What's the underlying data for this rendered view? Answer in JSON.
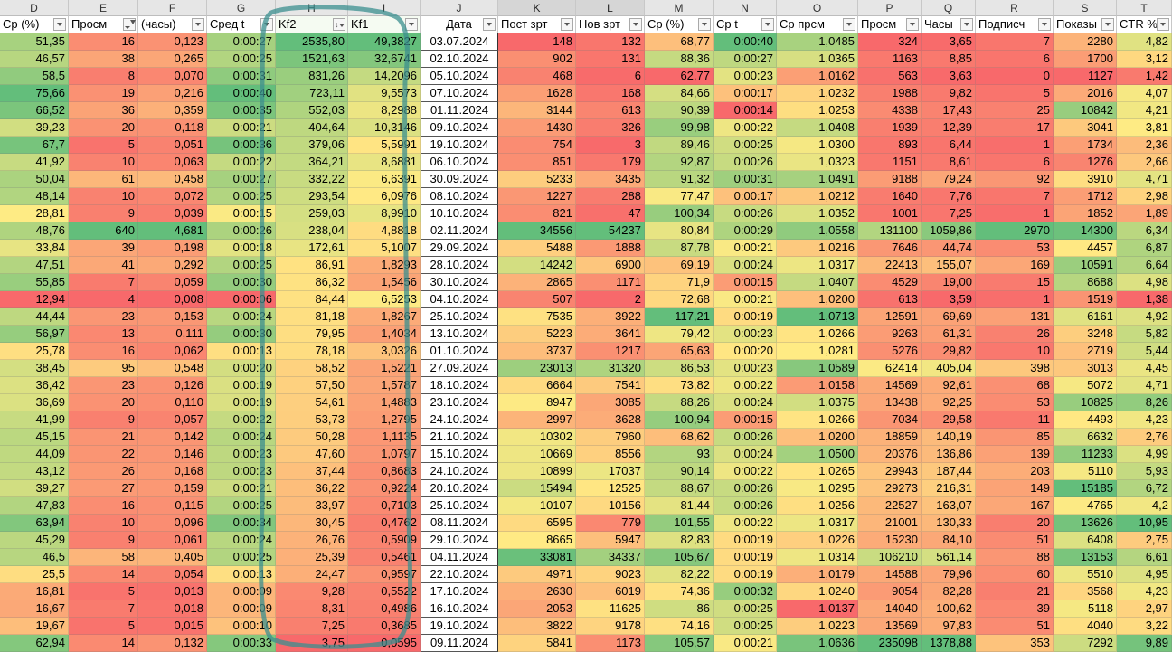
{
  "sheet": {
    "column_letters": [
      "D",
      "E",
      "F",
      "G",
      "H",
      "I",
      "J",
      "K",
      "L",
      "M",
      "N",
      "O",
      "P",
      "Q",
      "R",
      "S",
      "T"
    ],
    "headers": [
      "Ср (%)",
      "Просм",
      "(часы)",
      "Сред t",
      "Kf2",
      "Kf1",
      "Дата",
      "Пост зрт",
      "Нов зрт",
      "Ср (%)",
      "Ср t",
      "Ср прсм",
      "Просм",
      "Часы",
      "Подписч",
      "Показы",
      "CTR %"
    ],
    "rows": [
      [
        "51,35",
        "16",
        "0,123",
        "0:00:27",
        "2535,80",
        "49,3827",
        "03.07.2024",
        "148",
        "132",
        "68,77",
        "0:00:40",
        "1,0485",
        "324",
        "3,65",
        "7",
        "2280",
        "4,82"
      ],
      [
        "46,57",
        "38",
        "0,265",
        "0:00:25",
        "1521,63",
        "32,6741",
        "02.10.2024",
        "902",
        "131",
        "88,36",
        "0:00:27",
        "1,0365",
        "1163",
        "8,85",
        "6",
        "1700",
        "3,12"
      ],
      [
        "58,5",
        "8",
        "0,070",
        "0:00:31",
        "831,26",
        "14,2096",
        "05.10.2024",
        "468",
        "6",
        "62,77",
        "0:00:23",
        "1,0162",
        "563",
        "3,63",
        "0",
        "1127",
        "1,42"
      ],
      [
        "75,66",
        "19",
        "0,216",
        "0:00:40",
        "723,11",
        "9,5573",
        "07.10.2024",
        "1628",
        "168",
        "84,66",
        "0:00:17",
        "1,0232",
        "1988",
        "9,82",
        "5",
        "2016",
        "4,07"
      ],
      [
        "66,52",
        "36",
        "0,359",
        "0:00:35",
        "552,03",
        "8,2988",
        "01.11.2024",
        "3144",
        "613",
        "90,39",
        "0:00:14",
        "1,0253",
        "4338",
        "17,43",
        "25",
        "10842",
        "4,21"
      ],
      [
        "39,23",
        "20",
        "0,118",
        "0:00:21",
        "404,64",
        "10,3146",
        "09.10.2024",
        "1430",
        "326",
        "99,98",
        "0:00:22",
        "1,0408",
        "1939",
        "12,39",
        "17",
        "3041",
        "3,81"
      ],
      [
        "67,7",
        "5",
        "0,051",
        "0:00:36",
        "379,06",
        "5,5991",
        "19.10.2024",
        "754",
        "3",
        "89,46",
        "0:00:25",
        "1,0300",
        "893",
        "6,44",
        "1",
        "1734",
        "2,36"
      ],
      [
        "41,92",
        "10",
        "0,063",
        "0:00:22",
        "364,21",
        "8,6881",
        "06.10.2024",
        "851",
        "179",
        "92,87",
        "0:00:26",
        "1,0323",
        "1151",
        "8,61",
        "6",
        "1276",
        "2,66"
      ],
      [
        "50,04",
        "61",
        "0,458",
        "0:00:27",
        "332,22",
        "6,6391",
        "30.09.2024",
        "5233",
        "3435",
        "91,32",
        "0:00:31",
        "1,0491",
        "9188",
        "79,24",
        "92",
        "3910",
        "4,71"
      ],
      [
        "48,14",
        "10",
        "0,072",
        "0:00:25",
        "293,54",
        "6,0976",
        "08.10.2024",
        "1227",
        "288",
        "77,47",
        "0:00:17",
        "1,0212",
        "1640",
        "7,76",
        "7",
        "1712",
        "2,98"
      ],
      [
        "28,81",
        "9",
        "0,039",
        "0:00:15",
        "259,03",
        "8,9910",
        "10.10.2024",
        "821",
        "47",
        "100,34",
        "0:00:26",
        "1,0352",
        "1001",
        "7,25",
        "1",
        "1852",
        "1,89"
      ],
      [
        "48,76",
        "640",
        "4,681",
        "0:00:26",
        "238,04",
        "4,8818",
        "02.11.2024",
        "34556",
        "54237",
        "80,84",
        "0:00:29",
        "1,0558",
        "131100",
        "1059,86",
        "2970",
        "14300",
        "6,34"
      ],
      [
        "33,84",
        "39",
        "0,198",
        "0:00:18",
        "172,61",
        "5,1007",
        "29.09.2024",
        "5488",
        "1888",
        "87,78",
        "0:00:21",
        "1,0216",
        "7646",
        "44,74",
        "53",
        "4457",
        "6,87"
      ],
      [
        "47,51",
        "41",
        "0,292",
        "0:00:25",
        "86,91",
        "1,8293",
        "28.10.2024",
        "14242",
        "6900",
        "69,19",
        "0:00:24",
        "1,0317",
        "22413",
        "155,07",
        "169",
        "10591",
        "6,64"
      ],
      [
        "55,85",
        "7",
        "0,059",
        "0:00:30",
        "86,32",
        "1,5456",
        "30.10.2024",
        "2865",
        "1171",
        "71,9",
        "0:00:15",
        "1,0407",
        "4529",
        "19,00",
        "15",
        "8688",
        "4,98"
      ],
      [
        "12,94",
        "4",
        "0,008",
        "0:00:06",
        "84,44",
        "6,5253",
        "04.10.2024",
        "507",
        "2",
        "72,68",
        "0:00:21",
        "1,0200",
        "613",
        "3,59",
        "1",
        "1519",
        "1,38"
      ],
      [
        "44,44",
        "23",
        "0,153",
        "0:00:24",
        "81,18",
        "1,8267",
        "25.10.2024",
        "7535",
        "3922",
        "117,21",
        "0:00:19",
        "1,0713",
        "12591",
        "69,69",
        "131",
        "6161",
        "4,92"
      ],
      [
        "56,97",
        "13",
        "0,111",
        "0:00:30",
        "79,95",
        "1,4034",
        "13.10.2024",
        "5223",
        "3641",
        "79,42",
        "0:00:23",
        "1,0266",
        "9263",
        "61,31",
        "26",
        "3248",
        "5,82"
      ],
      [
        "25,78",
        "16",
        "0,062",
        "0:00:13",
        "78,18",
        "3,0326",
        "01.10.2024",
        "3737",
        "1217",
        "65,63",
        "0:00:20",
        "1,0281",
        "5276",
        "29,82",
        "10",
        "2719",
        "5,44"
      ],
      [
        "38,45",
        "95",
        "0,548",
        "0:00:20",
        "58,52",
        "1,5221",
        "27.09.2024",
        "23013",
        "31320",
        "86,53",
        "0:00:23",
        "1,0589",
        "62414",
        "405,04",
        "398",
        "3013",
        "4,45"
      ],
      [
        "36,42",
        "23",
        "0,126",
        "0:00:19",
        "57,50",
        "1,5787",
        "18.10.2024",
        "6664",
        "7541",
        "73,82",
        "0:00:22",
        "1,0158",
        "14569",
        "92,61",
        "68",
        "5072",
        "4,71"
      ],
      [
        "36,69",
        "20",
        "0,110",
        "0:00:19",
        "54,61",
        "1,4883",
        "23.10.2024",
        "8947",
        "3085",
        "88,26",
        "0:00:24",
        "1,0375",
        "13438",
        "92,25",
        "53",
        "10825",
        "8,26"
      ],
      [
        "41,99",
        "9",
        "0,057",
        "0:00:22",
        "53,73",
        "1,2795",
        "24.10.2024",
        "2997",
        "3628",
        "100,94",
        "0:00:15",
        "1,0266",
        "7034",
        "29,58",
        "11",
        "4493",
        "4,23"
      ],
      [
        "45,15",
        "21",
        "0,142",
        "0:00:24",
        "50,28",
        "1,1135",
        "21.10.2024",
        "10302",
        "7960",
        "68,62",
        "0:00:26",
        "1,0200",
        "18859",
        "140,19",
        "85",
        "6632",
        "2,76"
      ],
      [
        "44,09",
        "22",
        "0,146",
        "0:00:23",
        "47,60",
        "1,0797",
        "15.10.2024",
        "10669",
        "8556",
        "93",
        "0:00:24",
        "1,0500",
        "20376",
        "136,86",
        "139",
        "11233",
        "4,99"
      ],
      [
        "43,12",
        "26",
        "0,168",
        "0:00:23",
        "37,44",
        "0,8683",
        "24.10.2024",
        "10899",
        "17037",
        "90,14",
        "0:00:22",
        "1,0265",
        "29943",
        "187,44",
        "203",
        "5110",
        "5,93"
      ],
      [
        "39,27",
        "27",
        "0,159",
        "0:00:21",
        "36,22",
        "0,9224",
        "20.10.2024",
        "15494",
        "12525",
        "88,67",
        "0:00:26",
        "1,0295",
        "29273",
        "216,31",
        "149",
        "15185",
        "6,72"
      ],
      [
        "47,83",
        "16",
        "0,115",
        "0:00:25",
        "33,97",
        "0,7103",
        "25.10.2024",
        "10107",
        "10156",
        "81,44",
        "0:00:26",
        "1,0256",
        "22527",
        "163,07",
        "167",
        "4765",
        "4,2"
      ],
      [
        "63,94",
        "10",
        "0,096",
        "0:00:34",
        "30,45",
        "0,4762",
        "08.11.2024",
        "6595",
        "779",
        "101,55",
        "0:00:22",
        "1,0317",
        "21001",
        "130,33",
        "20",
        "13626",
        "10,95"
      ],
      [
        "45,29",
        "9",
        "0,061",
        "0:00:24",
        "26,76",
        "0,5909",
        "29.10.2024",
        "8665",
        "5947",
        "82,83",
        "0:00:19",
        "1,0226",
        "15230",
        "84,10",
        "51",
        "6408",
        "2,75"
      ],
      [
        "46,5",
        "58",
        "0,405",
        "0:00:25",
        "25,39",
        "0,5461",
        "04.11.2024",
        "33081",
        "34337",
        "105,67",
        "0:00:19",
        "1,0314",
        "106210",
        "561,14",
        "88",
        "13153",
        "6,61"
      ],
      [
        "25,5",
        "14",
        "0,054",
        "0:00:13",
        "24,47",
        "0,9597",
        "22.10.2024",
        "4971",
        "9023",
        "82,22",
        "0:00:19",
        "1,0179",
        "14588",
        "79,96",
        "60",
        "5510",
        "4,95"
      ],
      [
        "16,81",
        "5",
        "0,013",
        "0:00:09",
        "9,28",
        "0,5522",
        "17.10.2024",
        "2630",
        "6019",
        "74,36",
        "0:00:32",
        "1,0240",
        "9054",
        "82,28",
        "21",
        "3568",
        "4,23"
      ],
      [
        "16,67",
        "7",
        "0,018",
        "0:00:09",
        "8,31",
        "0,4986",
        "16.10.2024",
        "2053",
        "11625",
        "86",
        "0:00:25",
        "1,0137",
        "14040",
        "100,62",
        "39",
        "5118",
        "2,97"
      ],
      [
        "19,67",
        "5",
        "0,015",
        "0:00:10",
        "7,25",
        "0,3685",
        "19.10.2024",
        "3822",
        "9178",
        "74,16",
        "0:00:25",
        "1,0223",
        "13569",
        "97,83",
        "51",
        "4040",
        "3,22"
      ],
      [
        "62,94",
        "14",
        "0,132",
        "0:00:33",
        "3,75",
        "0,0595",
        "09.11.2024",
        "5841",
        "1173",
        "105,57",
        "0:00:21",
        "1,0636",
        "235098",
        "1378,88",
        "353",
        "7292",
        "9,89"
      ]
    ]
  },
  "colors": {
    "good": "#63be7b",
    "mid": "#ffeb84",
    "bad": "#f8696b",
    "annotation": "#2e8b8b"
  }
}
